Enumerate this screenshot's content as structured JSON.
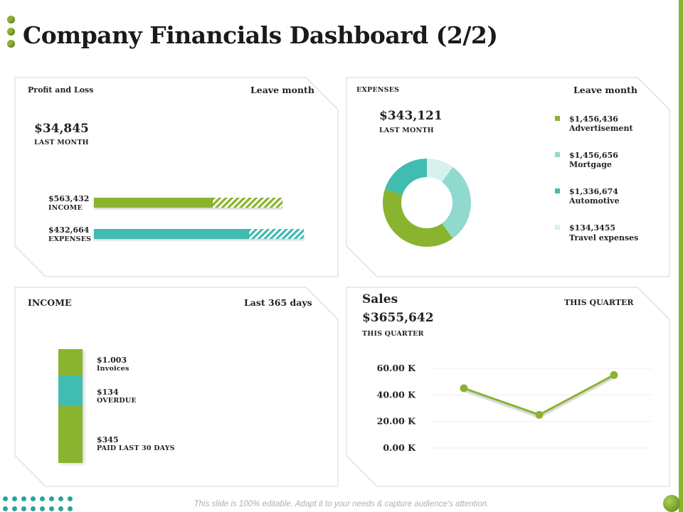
{
  "title": "Company Financials Dashboard (2/2)",
  "profit_loss": {
    "heading": "Profit and Loss",
    "period": "Leave month",
    "amount": "$34,845",
    "amount_caption": "LAST MONTH",
    "bars": [
      {
        "value": "$563,432",
        "label": "INCOME",
        "solid_fraction": 0.63,
        "total_fraction": 0.9,
        "color": "#8ab430"
      },
      {
        "value": "$432,664",
        "label": "EXPENSES",
        "solid_fraction": 0.74,
        "total_fraction": 1.0,
        "color": "#40bcb0"
      }
    ]
  },
  "expenses": {
    "heading": "EXPENSES",
    "period": "Leave month",
    "amount": "$343,121",
    "amount_caption": "LAST MONTH",
    "legend": [
      {
        "value": "$1,456,436",
        "label": "Advertisement",
        "color": "#8ab430"
      },
      {
        "value": "$1,456,656",
        "label": "Mortgage",
        "color": "#8fd9cf"
      },
      {
        "value": "$1,336,674",
        "label": "Automotive",
        "color": "#40bcb0"
      },
      {
        "value": "$134,3455",
        "label": "Travel expenses",
        "color": "#d8f1ee"
      }
    ]
  },
  "income": {
    "heading": "INCOME",
    "period": "Last 365 days",
    "items": [
      {
        "value": "$1.003",
        "label": "Invoices",
        "share": 0.23,
        "color": "#8ab430"
      },
      {
        "value": "$134",
        "label": "OVERDUE",
        "share": 0.27,
        "color": "#40bcb0"
      },
      {
        "value": "$345",
        "label": "PAID LAST 30 DAYS",
        "share": 0.5,
        "color": "#8ab430"
      }
    ]
  },
  "sales": {
    "heading": "Sales",
    "period": "THIS QUARTER",
    "amount": "$3655,642",
    "amount_caption": "THIS QUARTER"
  },
  "chart_data": [
    {
      "type": "pie",
      "title": "EXPENSES",
      "categories": [
        "Advertisement",
        "Mortgage",
        "Automotive",
        "Travel expenses"
      ],
      "values": [
        40,
        30,
        20,
        10
      ],
      "colors": [
        "#8ab430",
        "#8fd9cf",
        "#40bcb0",
        "#d8f1ee"
      ],
      "donut": true
    },
    {
      "type": "line",
      "title": "Sales",
      "x": [
        1,
        2,
        3
      ],
      "values": [
        45,
        25,
        55
      ],
      "ylim": [
        0,
        60
      ],
      "yticks": [
        "0.00 K",
        "20.00 K",
        "40.00 K",
        "60.00 K"
      ],
      "ytick_values": [
        0,
        20,
        40,
        60
      ],
      "color": "#8ab430"
    }
  ],
  "footer": "This slide is 100% editable. Adapt it to your needs & capture audience's attention."
}
